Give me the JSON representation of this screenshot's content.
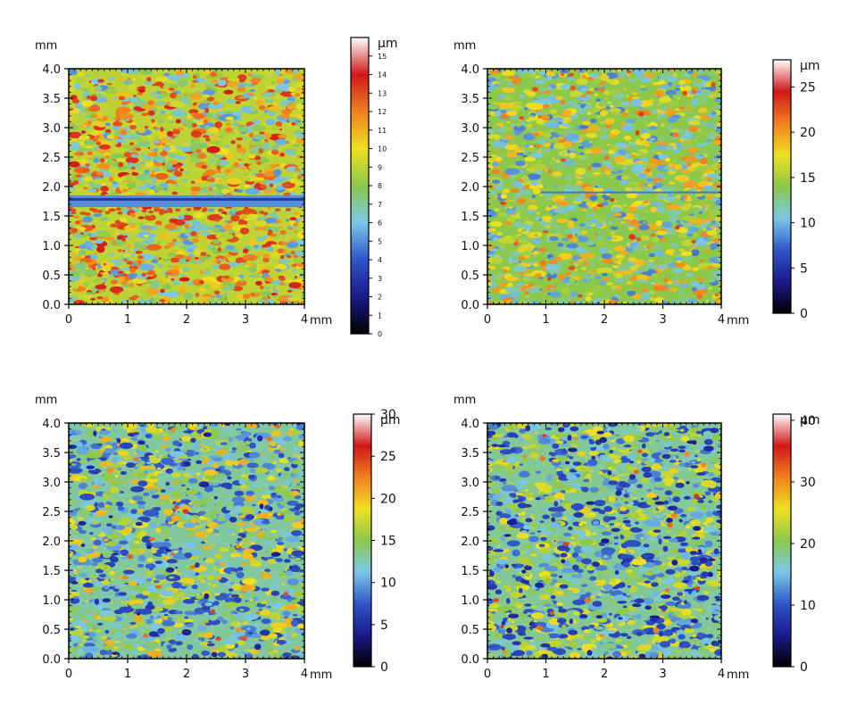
{
  "chart_data": [
    {
      "type": "heatmap",
      "x_unit": "mm",
      "y_unit": "mm",
      "xlim": [
        0,
        4
      ],
      "ylim": [
        0,
        4
      ],
      "x_ticks": [
        0,
        1,
        2,
        3,
        4
      ],
      "y_ticks": [
        0.0,
        0.5,
        1.0,
        1.5,
        2.0,
        2.5,
        3.0,
        3.5,
        4.0
      ],
      "x_tick_labels": [
        "0",
        "1",
        "2",
        "3",
        "4"
      ],
      "y_tick_labels": [
        "0.0",
        "0.5",
        "1.0",
        "1.5",
        "2.0",
        "2.5",
        "3.0",
        "3.5",
        "4.0"
      ],
      "colorbar": {
        "unit": "µm",
        "min": 0,
        "max": 16,
        "ticks": [
          0,
          1,
          2,
          3,
          4,
          5,
          6,
          7,
          8,
          9,
          10,
          11,
          12,
          13,
          14,
          15
        ],
        "tick_labels": [
          "0",
          "1",
          "2",
          "3",
          "4",
          "5",
          "6",
          "7",
          "8",
          "9",
          "10",
          "11",
          "12",
          "13",
          "14",
          "15"
        ]
      },
      "dominant_level": 9,
      "features": [
        "band of low values (~5 µm) near y = 1.7–1.8 mm",
        "scattered red peaks (12–14 µm)"
      ]
    },
    {
      "type": "heatmap",
      "x_unit": "mm",
      "y_unit": "mm",
      "xlim": [
        0,
        4
      ],
      "ylim": [
        0,
        4
      ],
      "x_ticks": [
        0,
        1,
        2,
        3,
        4
      ],
      "y_ticks": [
        0.0,
        0.5,
        1.0,
        1.5,
        2.0,
        2.5,
        3.0,
        3.5,
        4.0
      ],
      "x_tick_labels": [
        "0",
        "1",
        "2",
        "3",
        "4"
      ],
      "y_tick_labels": [
        "0.0",
        "0.5",
        "1.0",
        "1.5",
        "2.0",
        "2.5",
        "3.0",
        "3.5",
        "4.0"
      ],
      "colorbar": {
        "unit": "µm",
        "min": 0,
        "max": 28,
        "ticks": [
          0,
          5,
          10,
          15,
          20,
          25
        ],
        "tick_labels": [
          "0",
          "5",
          "10",
          "15",
          "20",
          "25"
        ]
      },
      "dominant_level": 14,
      "features": [
        "faint low line near y = 1.9 mm"
      ]
    },
    {
      "type": "heatmap",
      "x_unit": "mm",
      "y_unit": "mm",
      "xlim": [
        0,
        4
      ],
      "ylim": [
        0,
        4
      ],
      "x_ticks": [
        0,
        1,
        2,
        3,
        4
      ],
      "y_ticks": [
        0.0,
        0.5,
        1.0,
        1.5,
        2.0,
        2.5,
        3.0,
        3.5,
        4.0
      ],
      "x_tick_labels": [
        "0",
        "1",
        "2",
        "3",
        "4"
      ],
      "y_tick_labels": [
        "0.0",
        "0.5",
        "1.0",
        "1.5",
        "2.0",
        "2.5",
        "3.0",
        "3.5",
        "4.0"
      ],
      "colorbar": {
        "unit": "µm",
        "min": 0,
        "max": 30,
        "ticks": [
          0,
          5,
          10,
          15,
          20,
          25,
          30
        ],
        "tick_labels": [
          "0",
          "5",
          "10",
          "15",
          "20",
          "25",
          "30"
        ]
      },
      "dominant_level": 13,
      "features": [
        "isolated red peak near (0.7, 3.2) mm"
      ]
    },
    {
      "type": "heatmap",
      "x_unit": "mm",
      "y_unit": "mm",
      "xlim": [
        0,
        4
      ],
      "ylim": [
        0,
        4
      ],
      "x_ticks": [
        0,
        1,
        2,
        3,
        4
      ],
      "y_ticks": [
        0.0,
        0.5,
        1.0,
        1.5,
        2.0,
        2.5,
        3.0,
        3.5,
        4.0
      ],
      "x_tick_labels": [
        "0",
        "1",
        "2",
        "3",
        "4"
      ],
      "y_tick_labels": [
        "0.0",
        "0.5",
        "1.0",
        "1.5",
        "2.0",
        "2.5",
        "3.0",
        "3.5",
        "4.0"
      ],
      "colorbar": {
        "unit": "µm",
        "min": 0,
        "max": 41,
        "ticks": [
          0,
          10,
          20,
          30,
          40
        ],
        "tick_labels": [
          "0",
          "10",
          "20",
          "30",
          "40"
        ]
      },
      "dominant_level": 18,
      "features": [
        "frequent dark blue pits (~5–8 µm)"
      ]
    }
  ],
  "colors": {
    "stops": [
      "#000000",
      "#1a1a8c",
      "#2f55c8",
      "#7ac8e8",
      "#8cc84a",
      "#f0e020",
      "#f08020",
      "#d01818",
      "#ffffff"
    ]
  }
}
